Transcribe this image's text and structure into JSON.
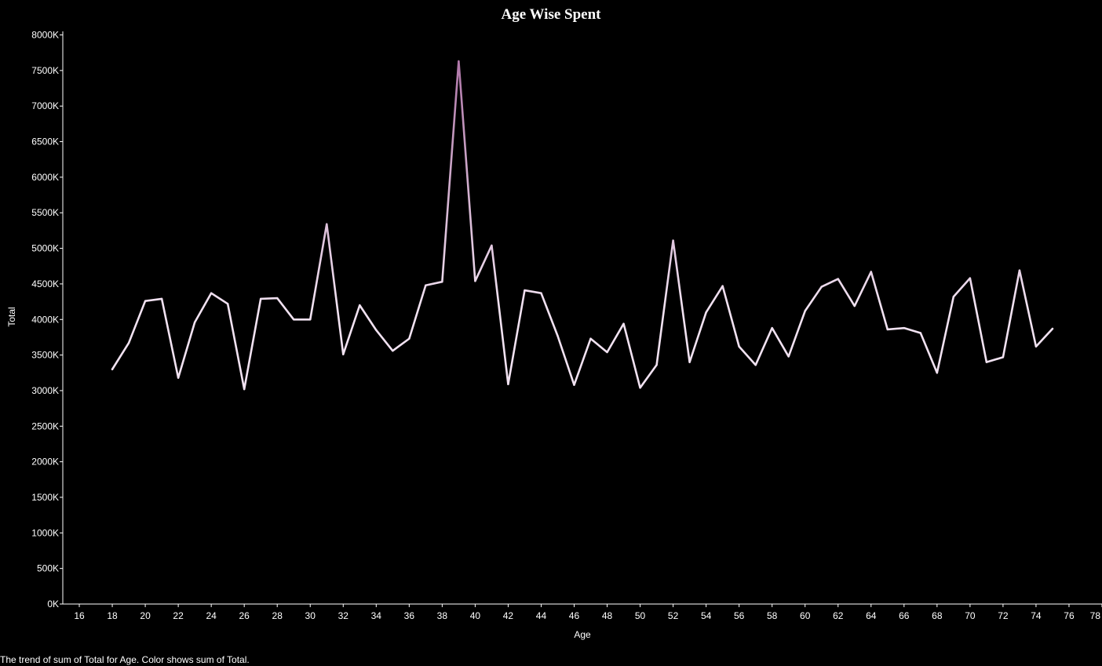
{
  "caption": "The trend of sum of Total for Age.  Color shows sum of Total.",
  "chart_data": {
    "type": "line",
    "title": "Age Wise Spent",
    "xlabel": "Age",
    "ylabel": "Total",
    "xlim": [
      15,
      78
    ],
    "ylim": [
      0,
      8050000
    ],
    "x_ticks": [
      16,
      18,
      20,
      22,
      24,
      26,
      28,
      30,
      32,
      34,
      36,
      38,
      40,
      42,
      44,
      46,
      48,
      50,
      52,
      54,
      56,
      58,
      60,
      62,
      64,
      66,
      68,
      70,
      72,
      74,
      76,
      78
    ],
    "y_ticks": [
      {
        "value": 0,
        "label": "0K"
      },
      {
        "value": 500000,
        "label": "500K"
      },
      {
        "value": 1000000,
        "label": "1000K"
      },
      {
        "value": 1500000,
        "label": "1500K"
      },
      {
        "value": 2000000,
        "label": "2000K"
      },
      {
        "value": 2500000,
        "label": "2500K"
      },
      {
        "value": 3000000,
        "label": "3000K"
      },
      {
        "value": 3500000,
        "label": "3500K"
      },
      {
        "value": 4000000,
        "label": "4000K"
      },
      {
        "value": 4500000,
        "label": "4500K"
      },
      {
        "value": 5000000,
        "label": "5000K"
      },
      {
        "value": 5500000,
        "label": "5500K"
      },
      {
        "value": 6000000,
        "label": "6000K"
      },
      {
        "value": 6500000,
        "label": "6500K"
      },
      {
        "value": 7000000,
        "label": "7000K"
      },
      {
        "value": 7500000,
        "label": "7500K"
      },
      {
        "value": 8000000,
        "label": "8000K"
      }
    ],
    "grid": false,
    "colors": {
      "low": "#f1e2f1",
      "high": "#a86aa0",
      "axis": "#ffffff",
      "background": "#000000"
    },
    "series": [
      {
        "x": [
          18,
          19,
          20,
          21,
          22,
          23,
          24,
          25,
          26,
          27,
          28,
          29,
          30,
          31,
          32,
          33,
          34,
          35,
          36,
          37,
          38,
          39,
          40,
          41,
          42,
          43,
          44,
          45,
          46,
          47,
          48,
          49,
          50,
          51,
          52,
          53,
          54,
          55,
          56,
          57,
          58,
          59,
          60,
          61,
          62,
          63,
          64,
          65,
          66,
          67,
          68,
          69,
          70,
          71,
          72,
          73,
          74,
          75
        ],
        "values": [
          3300000,
          3670000,
          4260000,
          4290000,
          3180000,
          3960000,
          4370000,
          4220000,
          3020000,
          4290000,
          4300000,
          4000000,
          4000000,
          5340000,
          3510000,
          4200000,
          3850000,
          3560000,
          3730000,
          4480000,
          4530000,
          7630000,
          4540000,
          5040000,
          3090000,
          4410000,
          4370000,
          3770000,
          3080000,
          3730000,
          3540000,
          3940000,
          3040000,
          3360000,
          5110000,
          3400000,
          4100000,
          4470000,
          3620000,
          3360000,
          3880000,
          3480000,
          4120000,
          4460000,
          4570000,
          4190000,
          4670000,
          3860000,
          3880000,
          3810000,
          3250000,
          4320000,
          4580000,
          3400000,
          3470000,
          4690000,
          3620000,
          3870000
        ]
      }
    ]
  }
}
